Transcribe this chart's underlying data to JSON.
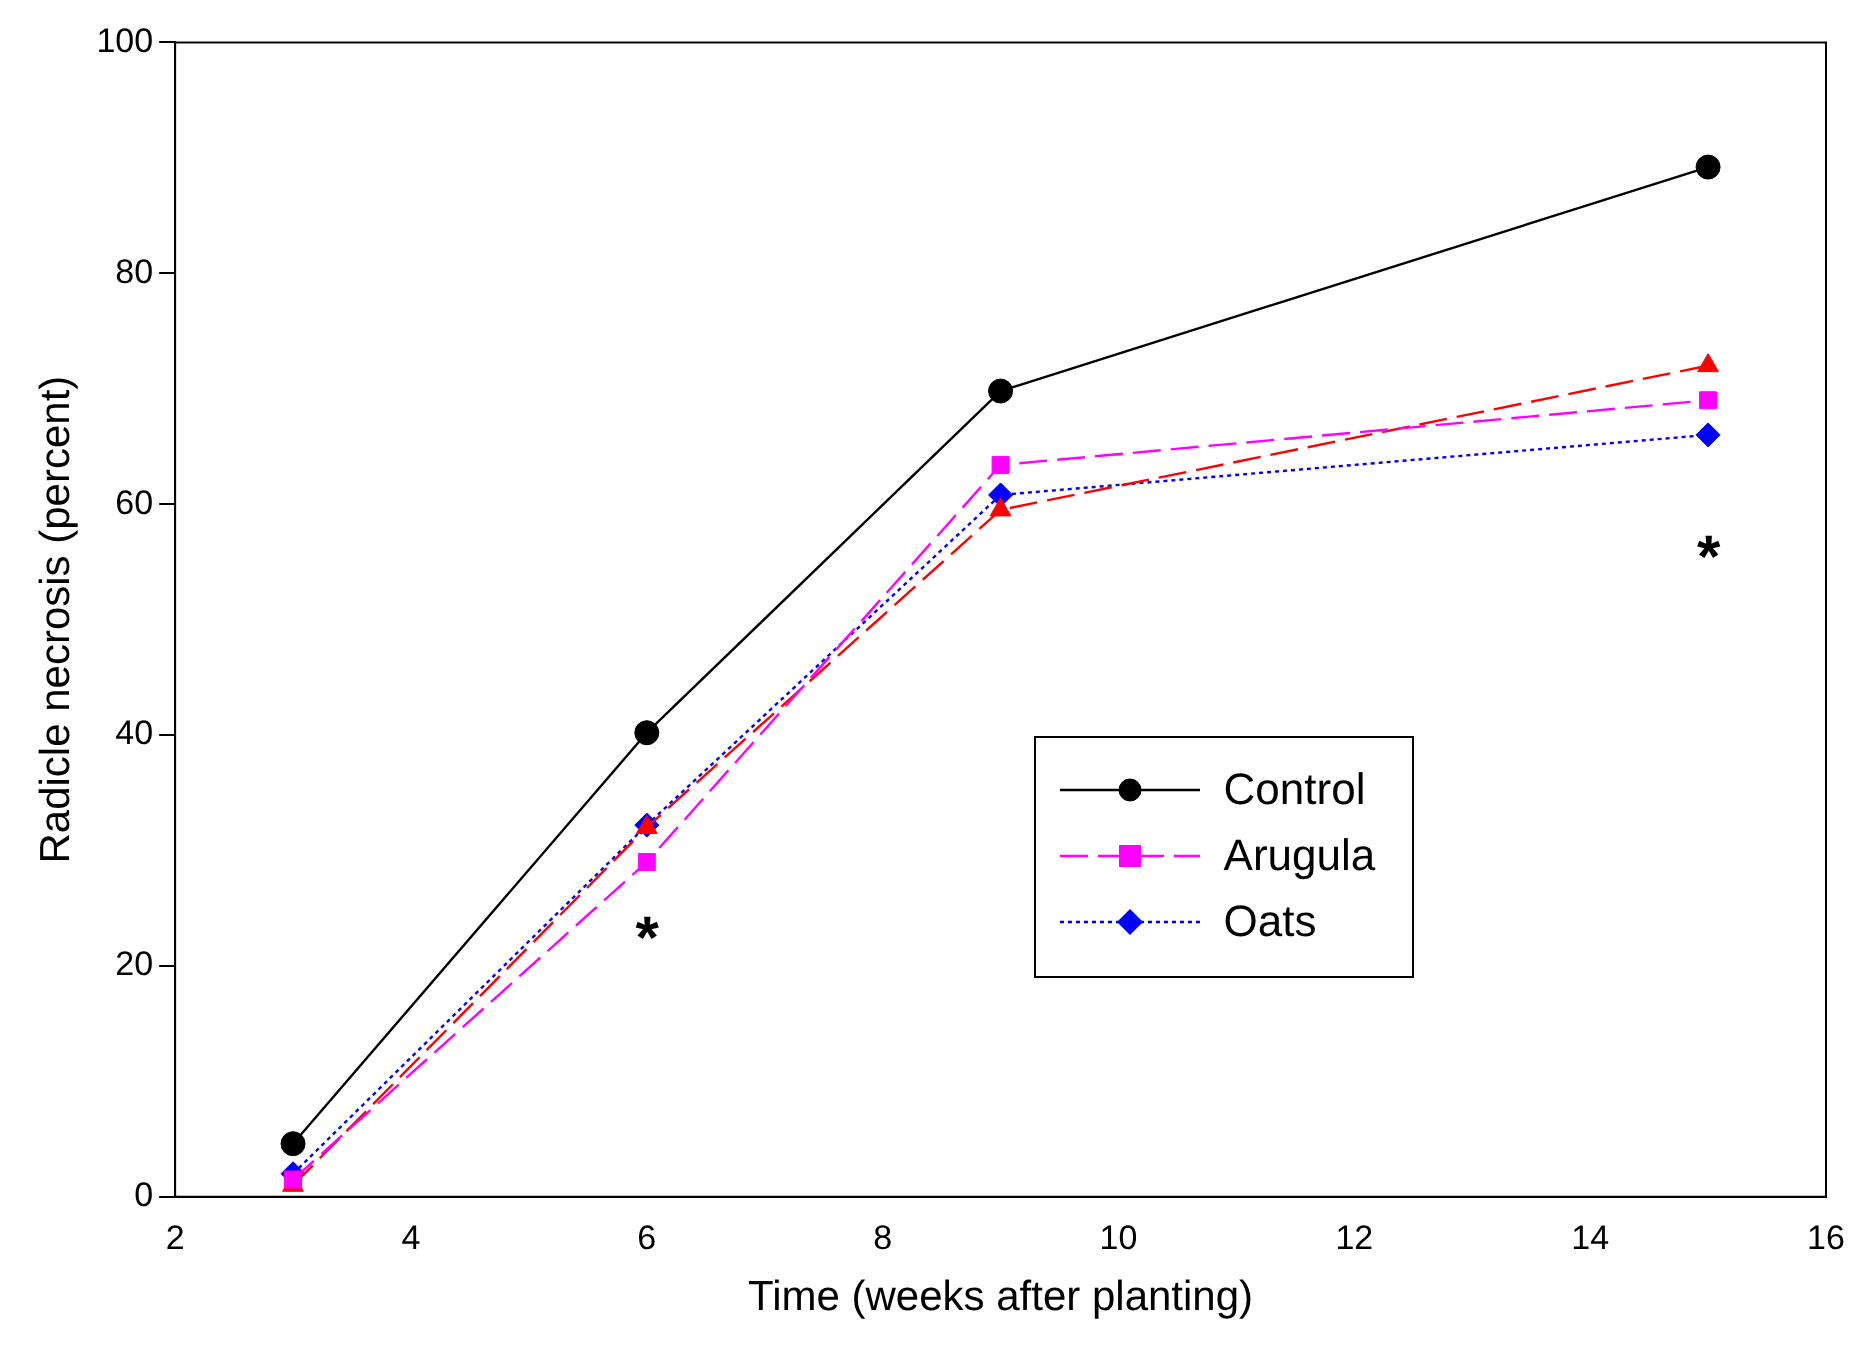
{
  "chart_data": {
    "type": "line",
    "xlabel": "Time (weeks after planting)",
    "ylabel": "Radicle necrosis (percent)",
    "x": [
      3,
      6,
      9,
      15
    ],
    "series": [
      {
        "name": "Control",
        "color": "#000000",
        "values": [
          4.6,
          40.2,
          69.8,
          89.2
        ],
        "marker": "circle",
        "line_style": "solid"
      },
      {
        "name": "Arugula",
        "color": "#ff00ff",
        "values": [
          1.5,
          29,
          63.4,
          69
        ],
        "marker": "square",
        "line_style": "dashed"
      },
      {
        "color": "#ff0000",
        "values": [
          1,
          32,
          59.5,
          72
        ],
        "marker": "triangle",
        "line_style": "dashed"
      },
      {
        "name": "Oats",
        "color": "#0000ff",
        "values": [
          2,
          32.2,
          60.8,
          66
        ],
        "marker": "diamond",
        "line_style": "dotted"
      }
    ],
    "xlim": [
      2,
      16
    ],
    "xticks": [
      2,
      4,
      6,
      8,
      10,
      12,
      14,
      16
    ],
    "ylim": [
      0,
      100
    ],
    "yticks": [
      0,
      20,
      40,
      60,
      80,
      100
    ],
    "grid": false,
    "legend": "bottom right",
    "annotations": [
      "*",
      "*"
    ]
  }
}
